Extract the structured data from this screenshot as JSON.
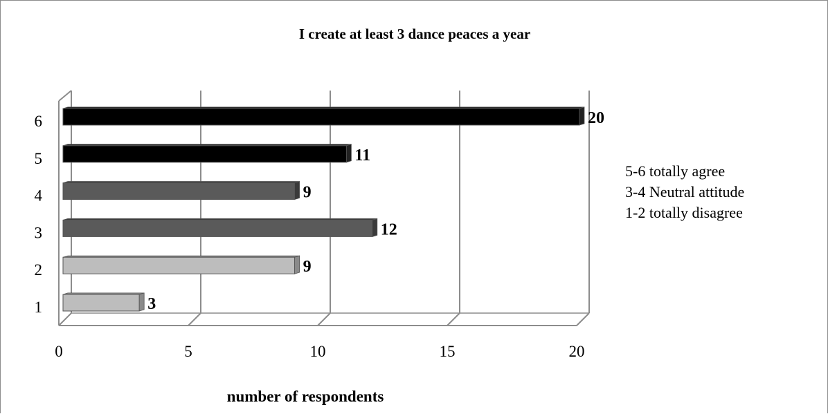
{
  "chart_data": {
    "type": "bar",
    "orientation": "horizontal",
    "style": "3d",
    "title": "I create at least 3 dance peaces a year",
    "xlabel": "number of respondents",
    "ylabel": "",
    "categories": [
      "1",
      "2",
      "3",
      "4",
      "5",
      "6"
    ],
    "values": [
      3,
      9,
      12,
      9,
      11,
      20
    ],
    "xlim": [
      0,
      20
    ],
    "xticks": [
      0,
      5,
      10,
      15,
      20
    ],
    "grid": true,
    "bar_colors": [
      "#bdbdbd",
      "#bdbdbd",
      "#5a5a5a",
      "#5a5a5a",
      "#000000",
      "#000000"
    ],
    "legend": [
      {
        "label": "5-6 totally agree"
      },
      {
        "label": "3-4 Neutral attitude"
      },
      {
        "label": "1-2 totally disagree"
      }
    ],
    "legend_position": "right"
  }
}
